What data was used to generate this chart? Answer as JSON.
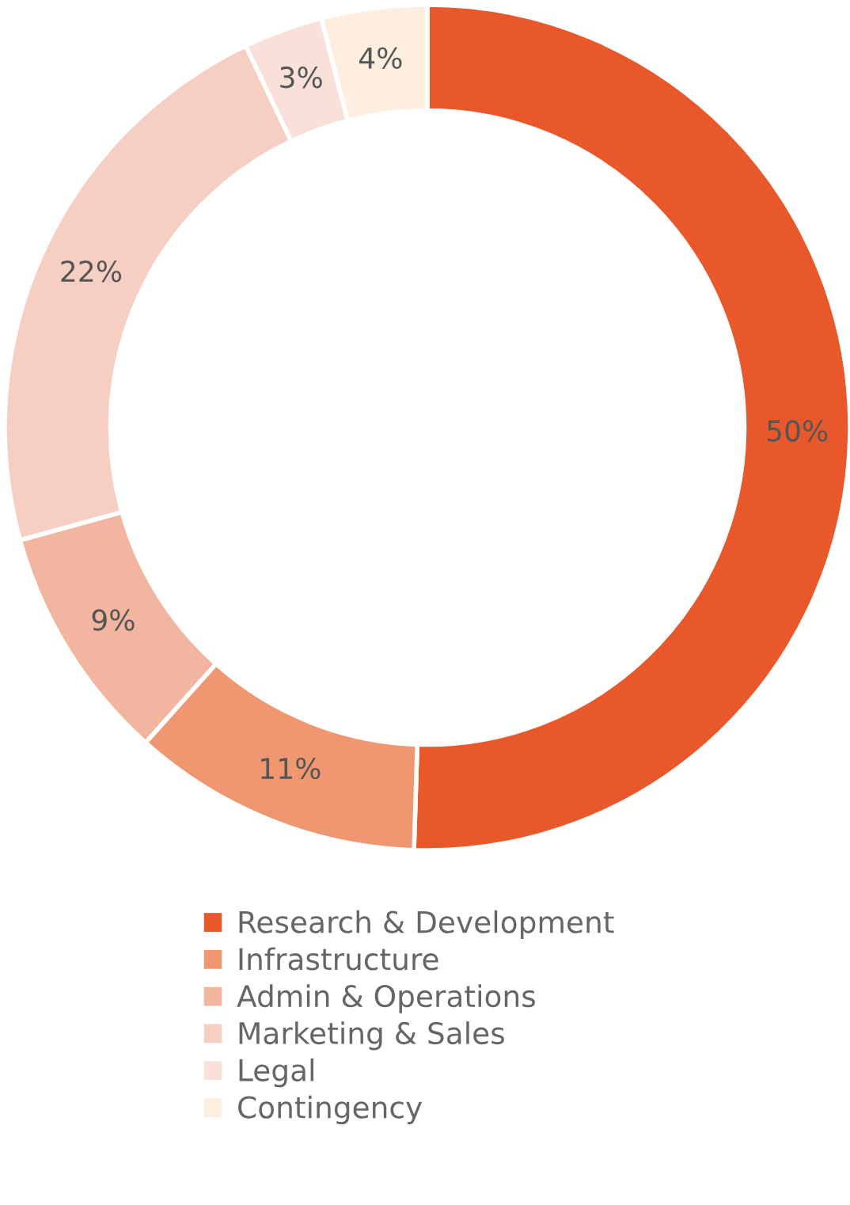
{
  "chart_data": {
    "type": "donut",
    "categories": [
      "Research & Development",
      "Infrastructure",
      "Admin & Operations",
      "Marketing & Sales",
      "Legal",
      "Contingency"
    ],
    "values": [
      50,
      11,
      9,
      22,
      3,
      4
    ],
    "colors": [
      "#e8582a",
      "#ee9770",
      "#f2b6a0",
      "#f6cfc2",
      "#f9e0d8",
      "#fdeedf"
    ],
    "value_labels": [
      "50%",
      "11%",
      "9%",
      "22%",
      "3%",
      "4%"
    ],
    "legend": "bottom"
  }
}
